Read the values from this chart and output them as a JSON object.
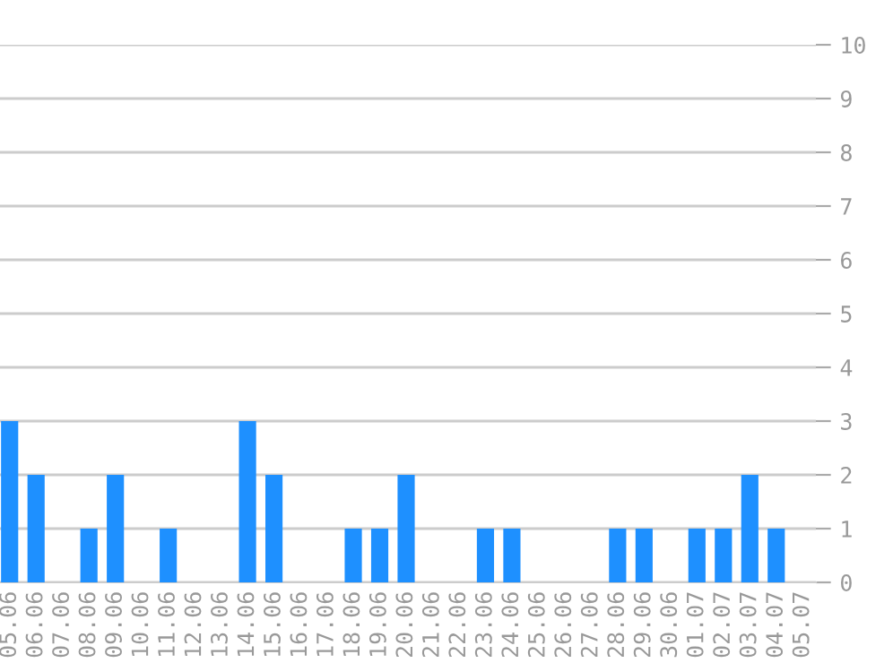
{
  "chart_data": {
    "type": "bar",
    "categories": [
      "05.06",
      "06.06",
      "07.06",
      "08.06",
      "09.06",
      "10.06",
      "11.06",
      "12.06",
      "13.06",
      "14.06",
      "15.06",
      "16.06",
      "17.06",
      "18.06",
      "19.06",
      "20.06",
      "21.06",
      "22.06",
      "23.06",
      "24.06",
      "25.06",
      "26.06",
      "27.06",
      "28.06",
      "29.06",
      "30.06",
      "01.07",
      "02.07",
      "03.07",
      "04.07",
      "05.07"
    ],
    "values": [
      3,
      2,
      0,
      1,
      2,
      0,
      1,
      0,
      0,
      3,
      2,
      0,
      0,
      1,
      1,
      2,
      0,
      0,
      1,
      1,
      0,
      0,
      0,
      1,
      1,
      0,
      1,
      1,
      2,
      1,
      0
    ],
    "color": "#1e90ff",
    "ylim": [
      0,
      10
    ],
    "yticks": [
      0,
      1,
      2,
      3,
      4,
      5,
      6,
      7,
      8,
      9,
      10
    ],
    "grid": "y",
    "legend": false
  }
}
